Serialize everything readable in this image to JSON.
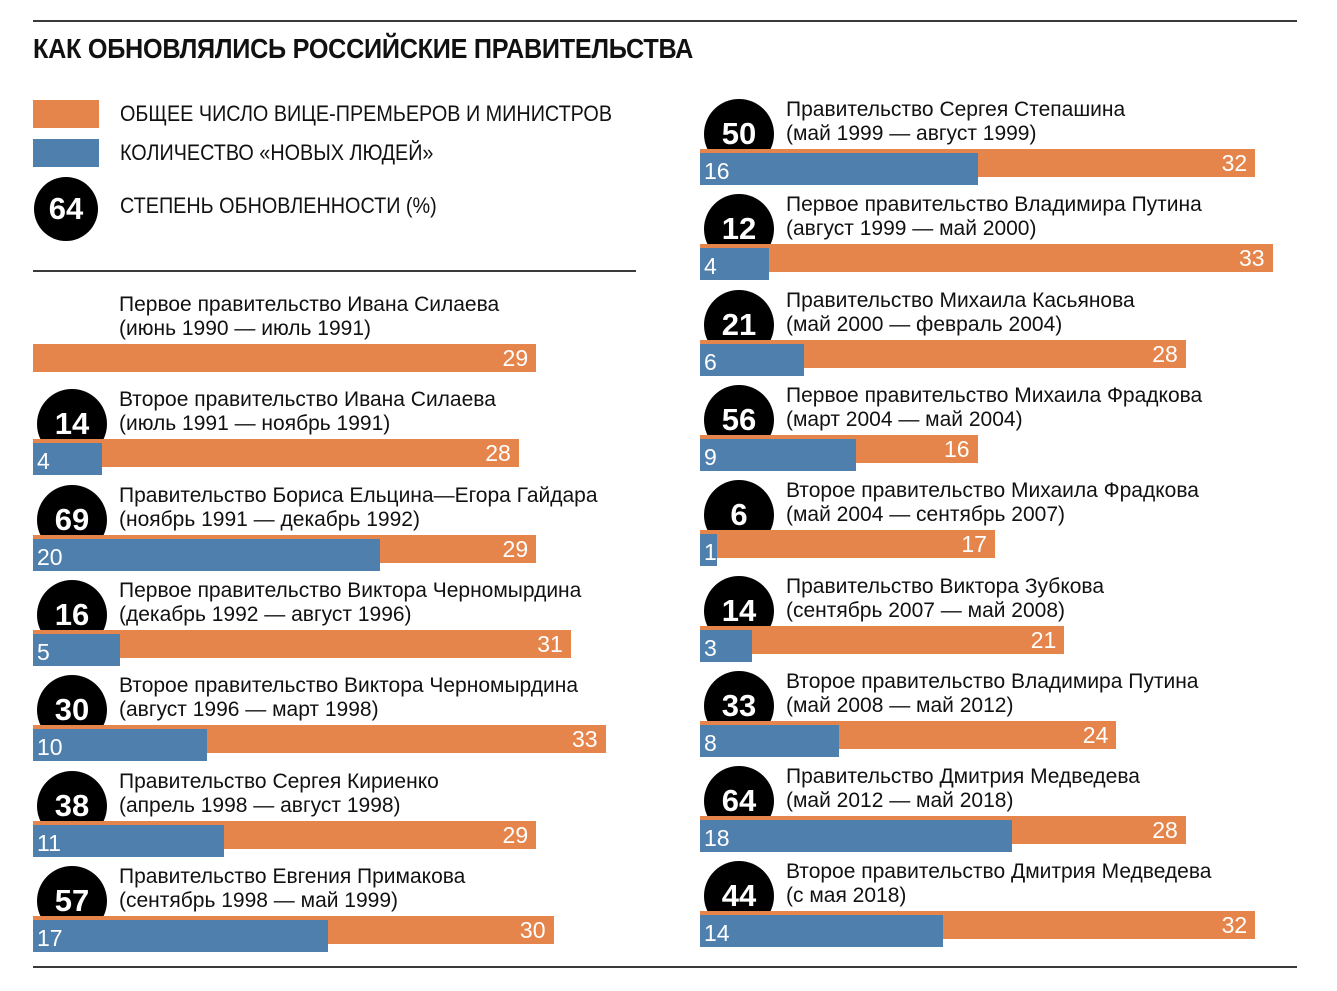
{
  "title": "КАК ОБНОВЛЯЛИСЬ РОССИЙСКИЕ ПРАВИТЕЛЬСТВА",
  "legend": {
    "total_label": "ОБЩЕЕ ЧИСЛО ВИЦЕ-ПРЕМЬЕРОВ И МИНИСТРОВ",
    "new_label": "КОЛИЧЕСТВО «НОВЫХ ЛЮДЕЙ»",
    "renewal_label": "СТЕПЕНЬ ОБНОВЛЕННОСТИ (%)",
    "renewal_sample": "64"
  },
  "colors": {
    "total": "#e5854b",
    "new": "#4f7fad",
    "circle": "#000000",
    "rule": "#3a3a3a"
  },
  "chart_data": {
    "type": "bar",
    "series": [
      {
        "name": "ОБЩЕЕ ЧИСЛО ВИЦЕ-ПРЕМЬЕРОВ И МИНИСТРОВ",
        "key": "total"
      },
      {
        "name": "КОЛИЧЕСТВО «НОВЫХ ЛЮДЕЙ»",
        "key": "new"
      }
    ],
    "governments": [
      {
        "name": "Первое правительство Ивана Силаева",
        "period": "(июнь 1990 — июль 1991)",
        "total": 29,
        "new": null,
        "renewal": null
      },
      {
        "name": "Второе правительство Ивана Силаева",
        "period": "(июль 1991 — ноябрь 1991)",
        "total": 28,
        "new": 4,
        "renewal": 14
      },
      {
        "name": "Правительство Бориса Ельцина—Егора Гайдара",
        "period": "(ноябрь 1991 — декабрь 1992)",
        "total": 29,
        "new": 20,
        "renewal": 69
      },
      {
        "name": "Первое правительство Виктора Черномырдина",
        "period": "(декабрь 1992 — август 1996)",
        "total": 31,
        "new": 5,
        "renewal": 16
      },
      {
        "name": "Второе правительство Виктора Черномырдина",
        "period": "(август 1996 — март 1998)",
        "total": 33,
        "new": 10,
        "renewal": 30
      },
      {
        "name": "Правительство Сергея Кириенко",
        "period": "(апрель 1998 — август 1998)",
        "total": 29,
        "new": 11,
        "renewal": 38
      },
      {
        "name": "Правительство Евгения Примакова",
        "period": "(сентябрь 1998 — май 1999)",
        "total": 30,
        "new": 17,
        "renewal": 57
      },
      {
        "name": "Правительство Сергея Степашина",
        "period": "(май 1999 — август 1999)",
        "total": 32,
        "new": 16,
        "renewal": 50
      },
      {
        "name": "Первое правительство Владимира Путина",
        "period": "(август 1999 — май 2000)",
        "total": 33,
        "new": 4,
        "renewal": 12
      },
      {
        "name": "Правительство Михаила Касьянова",
        "period": "(май 2000 — февраль 2004)",
        "total": 28,
        "new": 6,
        "renewal": 21
      },
      {
        "name": "Первое правительство Михаила Фрадкова",
        "period": "(март 2004 — май 2004)",
        "total": 16,
        "new": 9,
        "renewal": 56
      },
      {
        "name": "Второе правительство Михаила Фрадкова",
        "period": "(май 2004 — сентябрь 2007)",
        "total": 17,
        "new": 1,
        "renewal": 6
      },
      {
        "name": "Правительство Виктора Зубкова",
        "period": "(сентябрь 2007 — май 2008)",
        "total": 21,
        "new": 3,
        "renewal": 14
      },
      {
        "name": "Второе правительство Владимира Путина",
        "period": "(май 2008 — май 2012)",
        "total": 24,
        "new": 8,
        "renewal": 33
      },
      {
        "name": "Правительство Дмитрия Медведева",
        "period": "(май 2012 — май 2018)",
        "total": 28,
        "new": 18,
        "renewal": 64
      },
      {
        "name": "Второе правительство Дмитрия Медведева",
        "period": "(с мая 2018)",
        "total": 32,
        "new": 14,
        "renewal": 44
      }
    ]
  }
}
